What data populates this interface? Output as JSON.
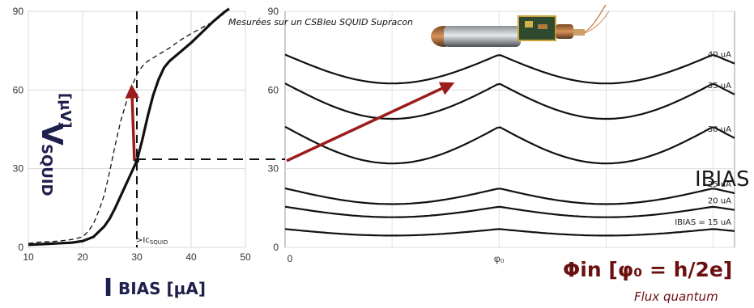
{
  "chart_data": [
    {
      "type": "line",
      "title": "",
      "xlabel_big": "I",
      "xlabel_rest": "BIAS [µA]",
      "ylabel_big": "V",
      "ylabel_sub": "SQUID",
      "ylabel_unit": "[µV]",
      "xlim": [
        10,
        50
      ],
      "ylim": [
        0,
        90
      ],
      "xticks": [
        "10",
        "20",
        "30",
        "40",
        "50"
      ],
      "yticks": [
        "0",
        "30",
        "60",
        "90"
      ],
      "marker_label": ">Ic",
      "marker_label_sub": "SQUID",
      "marker_x": 30,
      "series": [
        {
          "style": "solid",
          "x": [
            10,
            12,
            14,
            16,
            18,
            20,
            22,
            24,
            25,
            26,
            27,
            28,
            29,
            30,
            31,
            32,
            33,
            34,
            35,
            36,
            38,
            40,
            42,
            44,
            46,
            47
          ],
          "y": [
            1,
            1.2,
            1.4,
            1.6,
            1.8,
            2.4,
            4,
            8,
            11,
            15,
            19.5,
            24,
            28.5,
            33,
            41,
            50,
            58,
            64,
            68.5,
            71,
            74.5,
            78,
            82,
            86,
            89.5,
            91
          ]
        },
        {
          "style": "dashed",
          "x": [
            10,
            12,
            14,
            16,
            18,
            20,
            21,
            22,
            23,
            24,
            25,
            26,
            27,
            28,
            29,
            30,
            31,
            32,
            34,
            36,
            38,
            40,
            44,
            46
          ],
          "y": [
            1.5,
            2,
            2.2,
            2.5,
            3,
            4,
            6,
            9,
            14,
            20,
            29,
            39,
            48,
            55,
            61,
            66,
            69,
            71,
            73.5,
            76,
            79,
            81.5,
            86,
            89
          ]
        }
      ],
      "bias_point": {
        "x": 30,
        "y": 33
      },
      "arrow_to": {
        "x": 29.5,
        "y": 63
      }
    },
    {
      "type": "line",
      "title": "Mesurées sur un CSBleu SQUID Supracon",
      "xlabel_main": "Φin [φ₀ = h/2e]",
      "xlabel_caption": "Flux quantum",
      "xticks": [
        "0",
        "φ₀"
      ],
      "xtick_values": [
        0,
        1
      ],
      "xlim": [
        0,
        2.1
      ],
      "ylim": [
        0,
        90
      ],
      "yticks": [
        "0",
        "30",
        "60",
        "90"
      ],
      "annotation_big": "IBIAS",
      "series": [
        {
          "name": "40 uA",
          "label": "40 uA",
          "base": 73.5,
          "depth": 11
        },
        {
          "name": "35 uA",
          "label": "35 uA",
          "base": 62.5,
          "depth": 13.5
        },
        {
          "name": "30 uA",
          "label": "30 uA",
          "base": 46,
          "depth": 14
        },
        {
          "name": "25 uA",
          "label": "25 uA",
          "base": 22.5,
          "depth": 6
        },
        {
          "name": "20 uA",
          "label": "20 uA",
          "base": 15.5,
          "depth": 4
        },
        {
          "name": "IBIAS = 15 uA",
          "label": "IBIAS = 15 uA",
          "base": 7,
          "depth": 2.5
        }
      ],
      "bias_point": {
        "x": 0,
        "y": 33
      },
      "arrow_to": {
        "x": 0.78,
        "y": 63
      }
    }
  ],
  "colors": {
    "arrow": "#9b1c1c",
    "axis_label": "#1f1f4d",
    "flux_label": "#6b1010",
    "curve": "#111111"
  },
  "photo": {
    "icon": "squid-sensor-photo"
  }
}
